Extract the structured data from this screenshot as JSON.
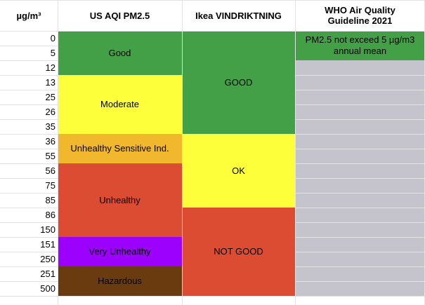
{
  "header": {
    "units": "µg/m³",
    "us_aqi": "US AQI PM2.5",
    "ikea": "Ikea VINDRIKTNING",
    "who": "WHO Air Quality Guideline 2021"
  },
  "rows": [
    "0",
    "5",
    "12",
    "13",
    "25",
    "26",
    "35",
    "36",
    "55",
    "56",
    "75",
    "85",
    "86",
    "150",
    "151",
    "250",
    "251",
    "500"
  ],
  "us_aqi_bands": [
    {
      "label": "Good",
      "color": "#43a047"
    },
    {
      "label": "Moderate",
      "color": "#fcff3a"
    },
    {
      "label": "Unhealthy Sensitive Ind.",
      "color": "#f1b82d"
    },
    {
      "label": "Unhealthy",
      "color": "#db4c33"
    },
    {
      "label": "Very Unhealthy",
      "color": "#9c01fd"
    },
    {
      "label": "Hazardous",
      "color": "#6b3b10"
    }
  ],
  "ikea_bands": [
    {
      "label": "GOOD",
      "color": "#43a047"
    },
    {
      "label": "OK",
      "color": "#fcff3a"
    },
    {
      "label": "NOT GOOD",
      "color": "#db4c33"
    }
  ],
  "who_bands": [
    {
      "label": "PM2.5 not exceed 5 µg/m3 annual mean",
      "color": "#43a047"
    },
    {
      "label": "",
      "color": "#c5c4cc"
    }
  ]
}
